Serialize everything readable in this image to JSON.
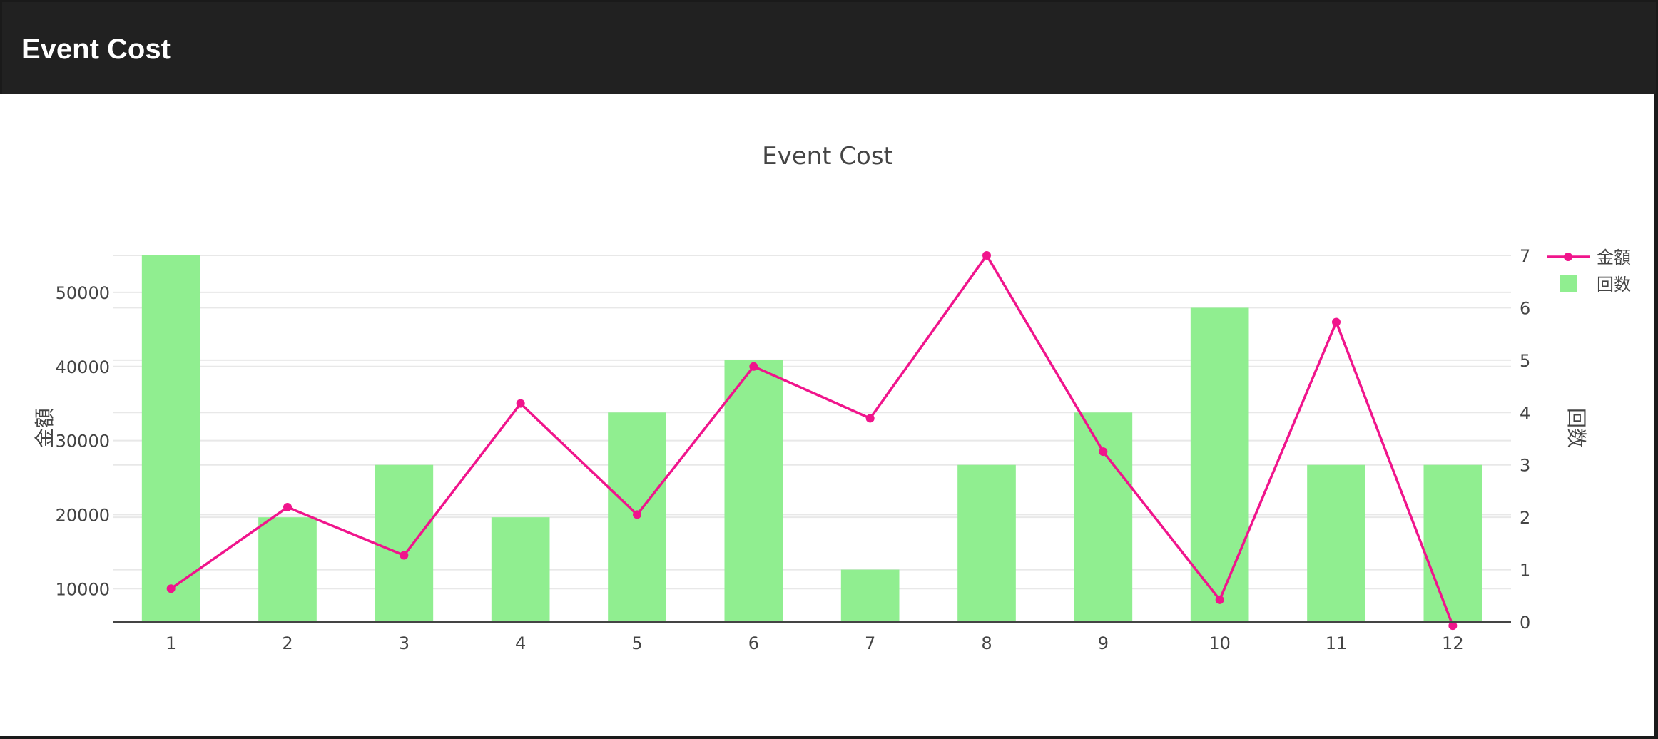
{
  "header": {
    "title": "Event Cost"
  },
  "colors": {
    "bar": "#90EE90",
    "line": "#F0158C",
    "header_bg": "#212121"
  },
  "chart_data": {
    "type": "bar+line",
    "title": "Event Cost",
    "x": [
      1,
      2,
      3,
      4,
      5,
      6,
      7,
      8,
      9,
      10,
      11,
      12
    ],
    "y_left_label": "金額",
    "y_right_label": "回数",
    "y_left_ticks": [
      10000,
      20000,
      30000,
      40000,
      50000
    ],
    "y_right_ticks": [
      0,
      1,
      2,
      3,
      4,
      5,
      6,
      7
    ],
    "y_left_range": [
      5500,
      55000
    ],
    "y_right_range": [
      0,
      7
    ],
    "legend_position": "top-right",
    "series": [
      {
        "name": "金額",
        "type": "line",
        "axis": "left",
        "values": [
          10000,
          21000,
          14500,
          35000,
          20000,
          40000,
          33000,
          55000,
          28500,
          8500,
          46000,
          5000
        ]
      },
      {
        "name": "回数",
        "type": "bar",
        "axis": "right",
        "values": [
          7,
          2,
          3,
          2,
          4,
          5,
          1,
          3,
          4,
          6,
          3,
          3
        ]
      }
    ]
  }
}
